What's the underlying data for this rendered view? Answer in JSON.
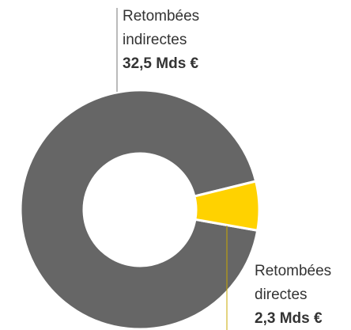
{
  "chart_data": {
    "type": "pie",
    "donut": true,
    "categories": [
      "Retombées indirectes",
      "Retombées directes"
    ],
    "values": [
      32.5,
      2.3
    ],
    "value_labels": [
      "32,5 Mds €",
      "2,3 Mds €"
    ],
    "colors": [
      "#666666",
      "#ffd200"
    ]
  }
}
